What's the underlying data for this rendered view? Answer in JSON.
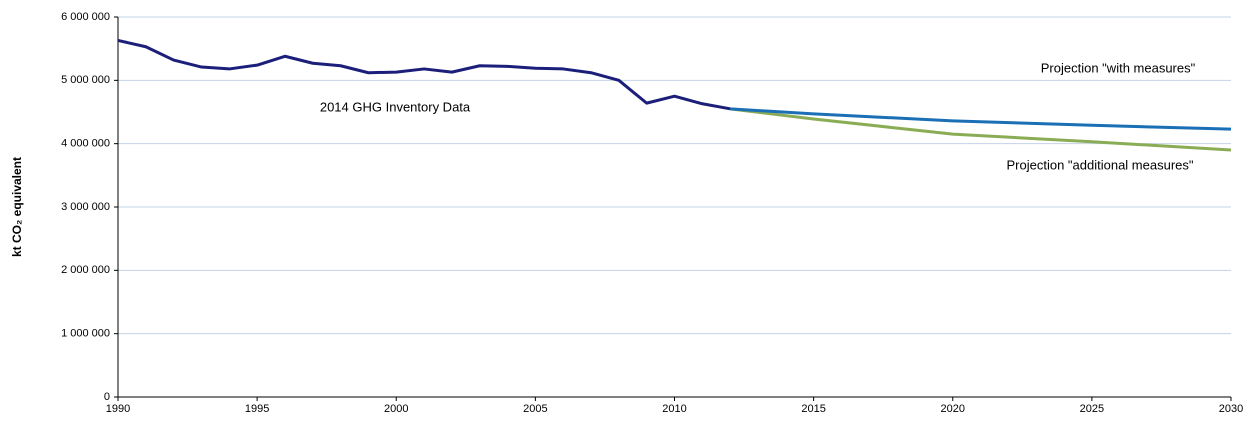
{
  "chart_data": {
    "type": "line",
    "ylabel": "kt CO₂ equivalent",
    "annotations": [
      "2014 GHG Inventory Data",
      "Projection \"with measures\"",
      "Projection \"additional measures\""
    ],
    "series": [
      {
        "name": "2014 GHG Inventory Data",
        "color": "#1b1f7a",
        "x": [
          1990,
          1991,
          1992,
          1993,
          1994,
          1995,
          1996,
          1997,
          1998,
          1999,
          2000,
          2001,
          2002,
          2003,
          2004,
          2005,
          2006,
          2007,
          2008,
          2009,
          2010,
          2011,
          2012
        ],
        "values": [
          5630000,
          5530000,
          5320000,
          5210000,
          5180000,
          5240000,
          5380000,
          5270000,
          5230000,
          5120000,
          5130000,
          5180000,
          5130000,
          5230000,
          5220000,
          5190000,
          5180000,
          5120000,
          5000000,
          4640000,
          4750000,
          4630000,
          4550000
        ]
      },
      {
        "name": "Projection \"with measures\"",
        "color": "#1a6fb5",
        "x": [
          2012,
          2015,
          2020,
          2025,
          2030
        ],
        "values": [
          4550000,
          4470000,
          4360000,
          4290000,
          4230000
        ]
      },
      {
        "name": "Projection \"additional measures\"",
        "color": "#8aac55",
        "x": [
          2012,
          2015,
          2020,
          2025,
          2030
        ],
        "values": [
          4550000,
          4390000,
          4150000,
          4030000,
          3900000
        ]
      }
    ],
    "xlim": [
      1990,
      2030
    ],
    "xticks": [
      1990,
      1995,
      2000,
      2005,
      2010,
      2015,
      2020,
      2025,
      2030
    ],
    "ylim": [
      0,
      6000000
    ],
    "yticks": [
      0,
      {
        "value": 1000000,
        "label": "1 000 000"
      },
      {
        "value": 2000000,
        "label": "2 000 000"
      },
      {
        "value": 3000000,
        "label": "3 000 000"
      },
      {
        "value": 4000000,
        "label": "4 000 000"
      },
      {
        "value": 5000000,
        "label": "5 000 000"
      },
      {
        "value": 6000000,
        "label": "6 000 000"
      }
    ],
    "grid": true
  }
}
